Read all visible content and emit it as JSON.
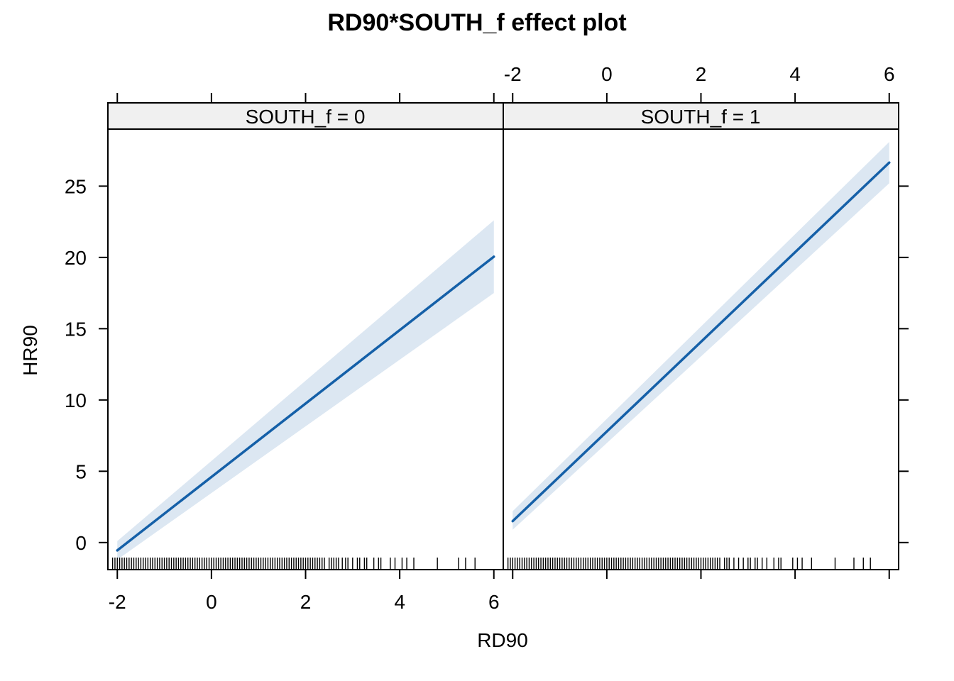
{
  "chart_data": {
    "type": "line",
    "title": "RD90*SOUTH_f effect plot",
    "xlabel": "RD90",
    "ylabel": "HR90",
    "xlim": [
      -2.2,
      6.2
    ],
    "ylim": [
      -1.9,
      29.0
    ],
    "x_ticks": [
      -2,
      0,
      2,
      4,
      6
    ],
    "y_ticks": [
      0,
      5,
      10,
      15,
      20,
      25
    ],
    "panels": [
      {
        "strip": "SOUTH_f = 0",
        "x": [
          -2,
          6
        ],
        "fit": [
          -0.55,
          20.05
        ],
        "lower": [
          -1.2,
          17.5
        ],
        "upper": [
          0.1,
          22.6
        ],
        "rug": [
          -2.1,
          -2.05,
          -2.0,
          -1.95,
          -1.9,
          -1.85,
          -1.8,
          -1.75,
          -1.7,
          -1.65,
          -1.6,
          -1.55,
          -1.5,
          -1.45,
          -1.4,
          -1.35,
          -1.3,
          -1.25,
          -1.2,
          -1.15,
          -1.1,
          -1.05,
          -1.0,
          -0.95,
          -0.9,
          -0.85,
          -0.8,
          -0.75,
          -0.7,
          -0.65,
          -0.6,
          -0.55,
          -0.5,
          -0.45,
          -0.4,
          -0.35,
          -0.3,
          -0.25,
          -0.2,
          -0.15,
          -0.1,
          -0.05,
          0.0,
          0.05,
          0.1,
          0.15,
          0.2,
          0.25,
          0.3,
          0.35,
          0.4,
          0.45,
          0.5,
          0.55,
          0.6,
          0.65,
          0.7,
          0.75,
          0.8,
          0.85,
          0.9,
          0.95,
          1.0,
          1.05,
          1.1,
          1.15,
          1.2,
          1.25,
          1.3,
          1.35,
          1.4,
          1.45,
          1.5,
          1.55,
          1.6,
          1.65,
          1.7,
          1.75,
          1.8,
          1.85,
          1.9,
          1.95,
          2.0,
          2.05,
          2.1,
          2.15,
          2.2,
          2.25,
          2.3,
          2.35,
          2.4,
          2.5,
          2.55,
          2.6,
          2.65,
          2.7,
          2.78,
          2.85,
          2.9,
          3.0,
          3.1,
          3.15,
          3.25,
          3.3,
          3.45,
          3.55,
          3.6,
          3.8,
          3.9,
          4.05,
          4.15,
          4.3,
          4.8,
          5.25,
          5.4,
          5.6
        ]
      },
      {
        "strip": "SOUTH_f = 1",
        "x": [
          -2,
          6
        ],
        "fit": [
          1.5,
          26.65
        ],
        "lower": [
          0.9,
          25.2
        ],
        "upper": [
          2.2,
          28.1
        ],
        "rug": [
          -2.1,
          -2.05,
          -2.0,
          -1.95,
          -1.9,
          -1.85,
          -1.8,
          -1.75,
          -1.7,
          -1.65,
          -1.6,
          -1.55,
          -1.5,
          -1.45,
          -1.4,
          -1.35,
          -1.3,
          -1.25,
          -1.2,
          -1.15,
          -1.1,
          -1.05,
          -1.0,
          -0.95,
          -0.9,
          -0.85,
          -0.8,
          -0.75,
          -0.7,
          -0.65,
          -0.6,
          -0.55,
          -0.5,
          -0.45,
          -0.4,
          -0.35,
          -0.3,
          -0.25,
          -0.2,
          -0.15,
          -0.1,
          -0.05,
          0.0,
          0.05,
          0.1,
          0.15,
          0.2,
          0.25,
          0.3,
          0.35,
          0.4,
          0.45,
          0.5,
          0.55,
          0.6,
          0.65,
          0.7,
          0.75,
          0.8,
          0.85,
          0.9,
          0.95,
          1.0,
          1.05,
          1.1,
          1.15,
          1.2,
          1.25,
          1.3,
          1.35,
          1.4,
          1.45,
          1.5,
          1.55,
          1.6,
          1.65,
          1.7,
          1.75,
          1.8,
          1.85,
          1.9,
          1.95,
          2.0,
          2.05,
          2.1,
          2.15,
          2.2,
          2.25,
          2.3,
          2.35,
          2.4,
          2.5,
          2.55,
          2.6,
          2.7,
          2.8,
          2.9,
          3.0,
          3.05,
          3.15,
          3.2,
          3.3,
          3.4,
          3.55,
          3.65,
          3.7,
          3.95,
          4.05,
          4.15,
          4.35,
          4.85,
          5.25,
          5.45,
          5.6
        ]
      }
    ],
    "colors": {
      "line": "#1560a8",
      "band": "#dce7f2",
      "strip": "#f0f0f0"
    },
    "grid": false,
    "legend": "none"
  }
}
